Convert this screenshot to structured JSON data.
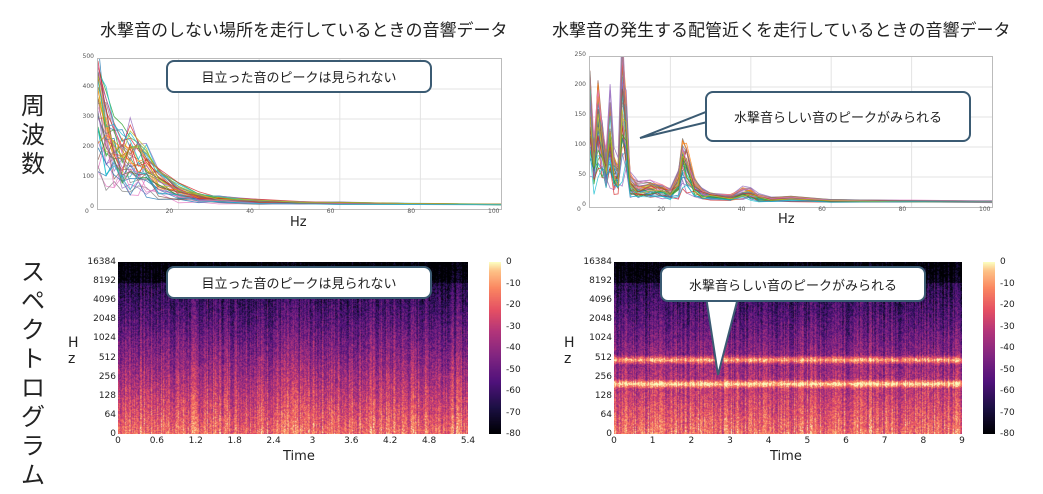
{
  "titles": {
    "left": "水撃音のしない場所を走行しているときの音響データ",
    "right": "水撃音の発生する配管近くを走行しているときの音響データ"
  },
  "row_labels": {
    "top": "周波数",
    "bottom": "スペクトログラム"
  },
  "callouts": {
    "no_peak": "目立った音のピークは見られない",
    "peak": "水撃音らしい音のピークがみられる"
  },
  "freq_left": {
    "xlabel": "Hz",
    "xticks": [
      "0",
      "20",
      "40",
      "60",
      "80",
      "100"
    ],
    "yticks": [
      "500",
      "400",
      "300",
      "200",
      "100",
      "0"
    ]
  },
  "freq_right": {
    "xlabel": "Hz",
    "xticks": [
      "0",
      "20",
      "40",
      "60",
      "80",
      "100"
    ],
    "yticks": [
      "250",
      "200",
      "150",
      "100",
      "50",
      "0"
    ]
  },
  "spec_yticks": [
    "16384",
    "8192",
    "4096",
    "2048",
    "1024",
    "512",
    "256",
    "128",
    "64",
    "0"
  ],
  "spec_ylabel": [
    "H",
    "z"
  ],
  "spec_left": {
    "xlabel": "Time",
    "xticks": [
      "0",
      "0.6",
      "1.2",
      "1.8",
      "2.4",
      "3",
      "3.6",
      "4.2",
      "4.8",
      "5.4"
    ]
  },
  "spec_right": {
    "xlabel": "Time",
    "xticks": [
      "0",
      "1",
      "2",
      "3",
      "4",
      "5",
      "6",
      "7",
      "8",
      "9"
    ]
  },
  "colorbar_ticks": [
    "0",
    "-10",
    "-20",
    "-30",
    "-40",
    "-50",
    "-60",
    "-70",
    "-80"
  ],
  "chart_data": [
    {
      "type": "line",
      "xlabel": "Hz",
      "xlim": [
        0,
        100
      ],
      "ylim": [
        0,
        500
      ],
      "grid": true,
      "series": [
        {
          "x": [
            0,
            2,
            4,
            6,
            8,
            10,
            12,
            15,
            20,
            25,
            30,
            40,
            50,
            60,
            80,
            100
          ],
          "values": [
            450,
            330,
            260,
            210,
            230,
            200,
            170,
            110,
            60,
            35,
            25,
            15,
            10,
            8,
            5,
            3
          ]
        }
      ]
    },
    {
      "type": "line",
      "xlabel": "Hz",
      "xlim": [
        0,
        100
      ],
      "ylim": [
        0,
        250
      ],
      "grid": true,
      "series": [
        {
          "x": [
            0,
            1,
            2,
            3,
            4,
            5,
            6,
            7,
            8,
            9,
            10,
            12,
            15,
            18,
            20,
            22,
            23,
            24,
            26,
            28,
            30,
            35,
            38,
            40,
            42,
            45,
            50,
            60,
            80,
            100
          ],
          "values": [
            190,
            90,
            170,
            120,
            80,
            150,
            70,
            60,
            235,
            150,
            40,
            30,
            30,
            25,
            20,
            45,
            95,
            80,
            35,
            20,
            15,
            12,
            22,
            20,
            12,
            8,
            10,
            5,
            4,
            3
          ]
        }
      ]
    },
    {
      "type": "heatmap",
      "xlabel": "Time",
      "xlim": [
        0,
        5.5
      ],
      "ylabel": "Hz",
      "yscale": "log2",
      "color_range": [
        -80,
        0
      ]
    },
    {
      "type": "heatmap",
      "xlabel": "Time",
      "xlim": [
        0,
        10
      ],
      "ylabel": "Hz",
      "yscale": "log2",
      "color_range": [
        -80,
        0
      ],
      "bands_hz": [
        220,
        550
      ]
    }
  ]
}
